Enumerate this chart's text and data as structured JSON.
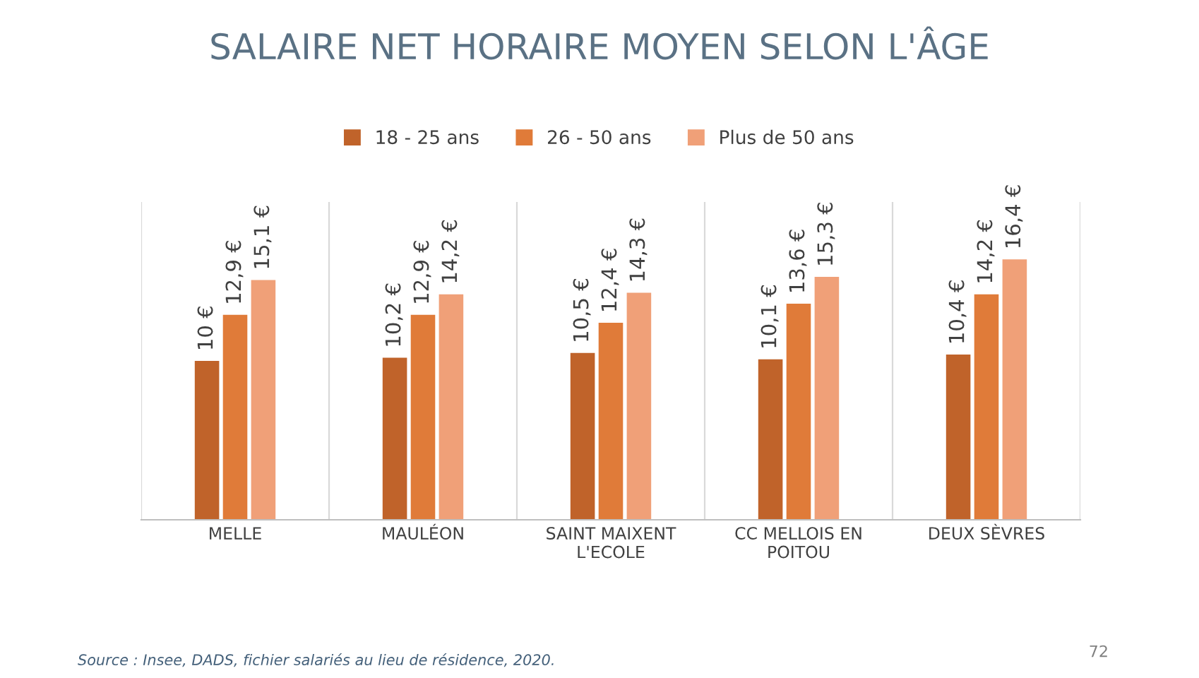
{
  "chart_data": {
    "type": "bar",
    "title": "SALAIRE NET HORAIRE MOYEN SELON L'ÂGE",
    "categories": [
      "MELLE",
      "MAULÉON",
      "SAINT MAIXENT\nL'ECOLE",
      "CC MELLOIS EN\nPOITOU",
      "DEUX SÈVRES"
    ],
    "series": [
      {
        "name": "18 - 25 ans",
        "color": "#c0632a",
        "values": [
          10,
          10.2,
          10.5,
          10.1,
          10.4
        ],
        "value_labels": [
          "10 €",
          "10,2 €",
          "10,5 €",
          "10,1 €",
          "10,4 €"
        ]
      },
      {
        "name": "26 - 50 ans",
        "color": "#e07b39",
        "values": [
          12.9,
          12.9,
          12.4,
          13.6,
          14.2
        ],
        "value_labels": [
          "12,9 €",
          "12,9 €",
          "12,4 €",
          "13,6 €",
          "14,2 €"
        ]
      },
      {
        "name": "Plus de 50 ans",
        "color": "#f0a078",
        "values": [
          15.1,
          14.2,
          14.3,
          15.3,
          16.4
        ],
        "value_labels": [
          "15,1 €",
          "14,2 €",
          "14,3 €",
          "15,3 €",
          "16,4 €"
        ]
      }
    ],
    "legend": "top",
    "grid": "x",
    "tick_labels": "x",
    "annotations": [
      "Source : Insee, DADS, fichier salariés au lieu de résidence, 2020.",
      "72"
    ]
  }
}
